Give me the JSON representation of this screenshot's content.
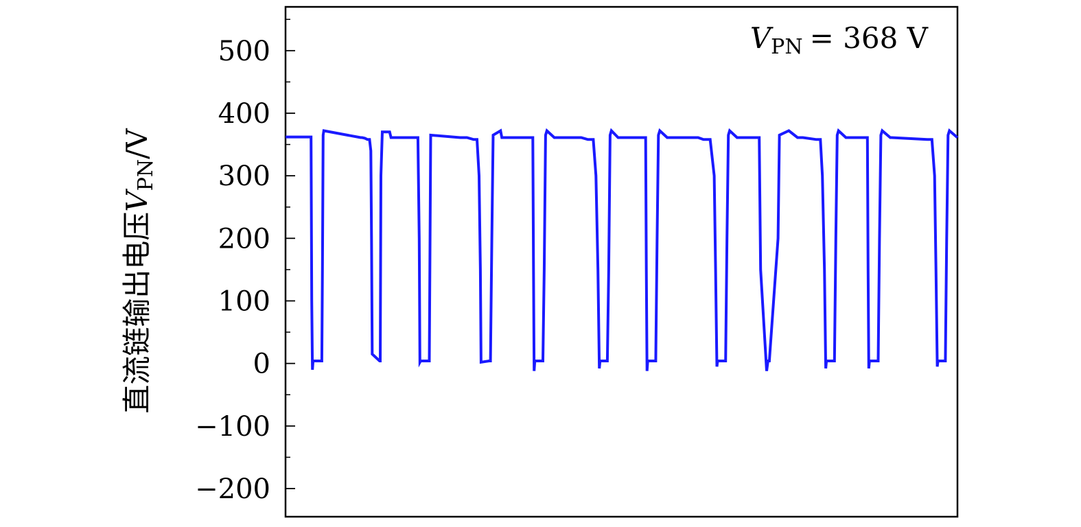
{
  "chart_data": {
    "type": "line",
    "title": "",
    "xlabel": "",
    "ylabel": {
      "text": "直流链输出电压",
      "var": "V",
      "sub": "PN",
      "unit": "/V"
    },
    "annotation": {
      "var": "V",
      "sub": "PN",
      "rest": "= 368 V"
    },
    "ylim": [
      -245,
      570
    ],
    "xlim": [
      0,
      1000
    ],
    "yticks": [
      500,
      400,
      300,
      200,
      100,
      0,
      -100,
      -200
    ],
    "ytick_labels": [
      "500",
      "400",
      "300",
      "200",
      "100",
      "0",
      "−100",
      "−200"
    ],
    "minor_ytick_step": 50,
    "grid": false,
    "series": [
      {
        "color": "#1a1aff",
        "x": [
          0,
          38,
          39,
          40,
          41,
          54,
          55,
          56,
          57,
          112,
          114,
          118,
          122,
          125,
          127,
          128,
          129,
          140,
          141,
          142,
          144,
          155,
          157,
          197,
          199,
          200,
          201,
          214,
          216,
          260,
          270,
          280,
          285,
          288,
          290,
          291,
          303,
          305,
          307,
          309,
          320,
          322,
          368,
          369,
          370,
          371,
          383,
          385,
          387,
          389,
          400,
          402,
          440,
          450,
          458,
          462,
          465,
          467,
          468,
          479,
          481,
          483,
          485,
          495,
          497,
          536,
          537,
          538,
          539,
          551,
          553,
          555,
          557,
          568,
          570,
          614,
          622,
          632,
          638,
          640,
          642,
          643,
          655,
          657,
          659,
          661,
          672,
          674,
          705,
          707,
          716,
          718,
          720,
          733,
          735,
          749,
          762,
          770,
          790,
          796,
          799,
          802,
          804,
          805,
          817,
          819,
          821,
          823,
          834,
          836,
          866,
          867,
          868,
          869,
          882,
          884,
          886,
          888,
          900,
          902,
          955,
          962,
          966,
          968,
          970,
          971,
          982,
          984,
          986,
          988,
          1000
        ],
        "y": [
          362,
          362,
          100,
          -10,
          4,
          4,
          150,
          365,
          372,
          361,
          361,
          360,
          358,
          358,
          340,
          200,
          15,
          4,
          4,
          300,
          370,
          370,
          361,
          361,
          200,
          2,
          4,
          4,
          365,
          361,
          361,
          358,
          358,
          300,
          150,
          2,
          4,
          4,
          200,
          365,
          372,
          361,
          361,
          150,
          -12,
          4,
          4,
          150,
          365,
          372,
          361,
          361,
          361,
          358,
          358,
          300,
          150,
          -8,
          4,
          4,
          150,
          365,
          372,
          361,
          361,
          361,
          150,
          -12,
          4,
          4,
          200,
          365,
          372,
          361,
          361,
          361,
          358,
          358,
          300,
          150,
          -5,
          4,
          4,
          200,
          365,
          372,
          361,
          361,
          361,
          150,
          -12,
          4,
          4,
          200,
          365,
          372,
          361,
          361,
          358,
          358,
          300,
          150,
          -8,
          4,
          4,
          200,
          365,
          372,
          361,
          361,
          361,
          150,
          -8,
          4,
          4,
          200,
          365,
          372,
          361,
          361,
          358,
          358,
          300,
          150,
          -5,
          4,
          4,
          200,
          365,
          372,
          361
        ]
      }
    ]
  }
}
